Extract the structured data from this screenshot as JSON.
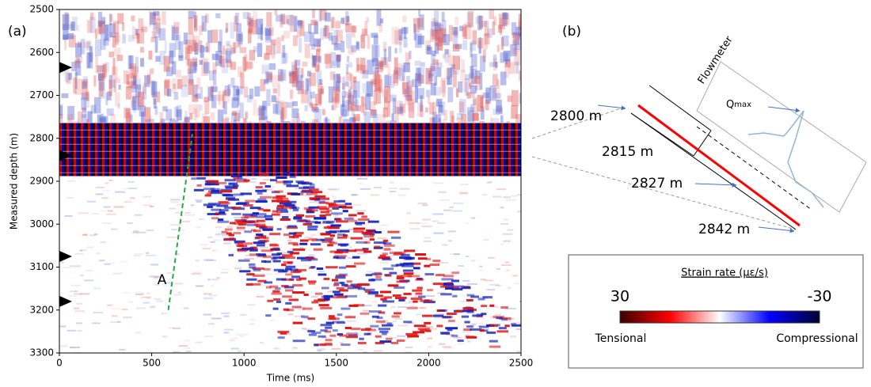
{
  "chart_data": {
    "type": "heatmap",
    "panel_label": "(a)",
    "xlabel": "Time (ms)",
    "ylabel": "Measured depth (m)",
    "xlim": [
      0,
      2500
    ],
    "ylim": [
      3300,
      2500
    ],
    "xticks": [
      0,
      500,
      1000,
      1500,
      2000,
      2500
    ],
    "yticks": [
      2500,
      2600,
      2700,
      2800,
      2900,
      3000,
      3100,
      3200,
      3300
    ],
    "depth_markers": [
      2635,
      2840,
      3075,
      3180
    ],
    "annotation": {
      "text": "A",
      "color": "#22aa44",
      "x": [
        590,
        720
      ],
      "y": [
        3200,
        2790
      ]
    },
    "colorbar": {
      "title": "Strain rate (με/s)",
      "range": [
        30,
        -30
      ],
      "colors": [
        "#3a0000",
        "#ff0000",
        "#ffffff",
        "#0000ff",
        "#000033"
      ],
      "left_label": "Tensional",
      "right_label": "Compressional"
    }
  },
  "diagram": {
    "panel_label": "(b)",
    "tool_label": "Flowmeter",
    "peak_label": "Q",
    "peak_sub": "max",
    "depths": [
      "2800 m",
      "2815 m",
      "2827 m",
      "2842 m"
    ]
  }
}
